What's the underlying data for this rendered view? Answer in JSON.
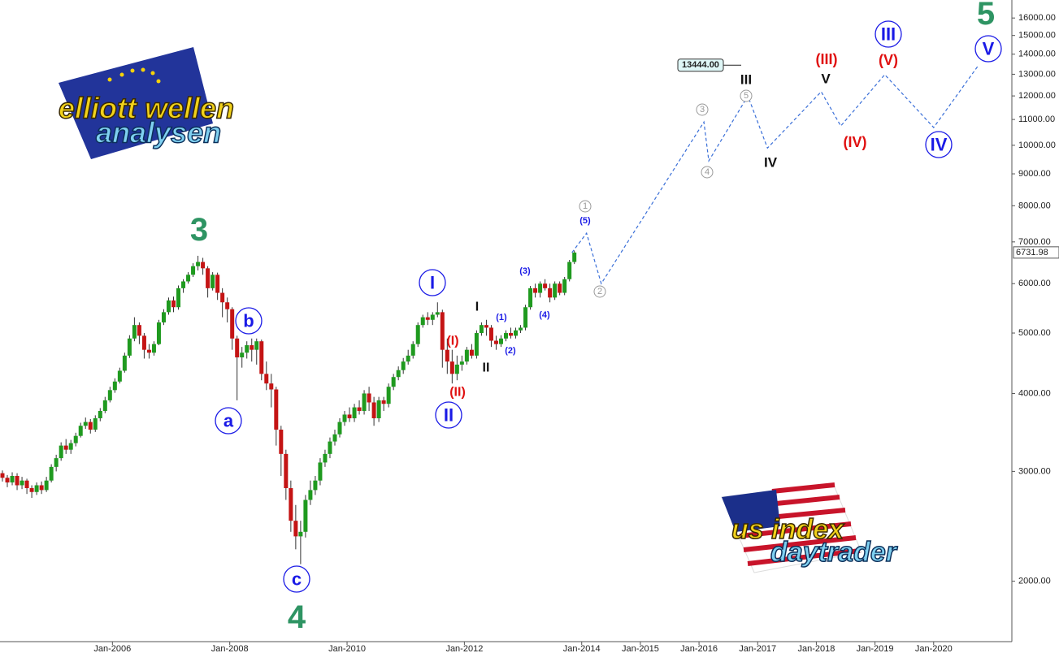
{
  "chart_data": {
    "type": "candlestick",
    "log_scale": true,
    "up_color": "#1f9a1f",
    "down_color": "#c41414",
    "xlim": [
      "2004-02",
      "2021-05"
    ],
    "xticks": [
      {
        "value": "2006-01",
        "label": "Jan-2006"
      },
      {
        "value": "2008-01",
        "label": "Jan-2008"
      },
      {
        "value": "2010-01",
        "label": "Jan-2010"
      },
      {
        "value": "2012-01",
        "label": "Jan-2012"
      },
      {
        "value": "2014-01",
        "label": "Jan-2014"
      },
      {
        "value": "2015-01",
        "label": "Jan-2015"
      },
      {
        "value": "2016-01",
        "label": "Jan-2016"
      },
      {
        "value": "2017-01",
        "label": "Jan-2017"
      },
      {
        "value": "2018-01",
        "label": "Jan-2018"
      },
      {
        "value": "2019-01",
        "label": "Jan-2019"
      },
      {
        "value": "2020-01",
        "label": "Jan-2020"
      }
    ],
    "ylim": [
      1600,
      17100
    ],
    "yticks": [
      {
        "value": 2000,
        "label": "2000.00"
      },
      {
        "value": 3000,
        "label": "3000.00"
      },
      {
        "value": 4000,
        "label": "4000.00"
      },
      {
        "value": 5000,
        "label": "5000.00"
      },
      {
        "value": 6000,
        "label": "6000.00"
      },
      {
        "value": 7000,
        "label": "7000.00"
      },
      {
        "value": 8000,
        "label": "8000.00"
      },
      {
        "value": 9000,
        "label": "9000.00"
      },
      {
        "value": 10000,
        "label": "10000.00"
      },
      {
        "value": 11000,
        "label": "11000.00"
      },
      {
        "value": 12000,
        "label": "12000.00"
      },
      {
        "value": 13000,
        "label": "13000.00"
      },
      {
        "value": 14000,
        "label": "14000.00"
      },
      {
        "value": 15000,
        "label": "15000.00"
      },
      {
        "value": 16000,
        "label": "16000.00"
      }
    ],
    "x": [
      "2004-02",
      "2004-03",
      "2004-04",
      "2004-05",
      "2004-06",
      "2004-07",
      "2004-08",
      "2004-09",
      "2004-10",
      "2004-11",
      "2004-12",
      "2005-01",
      "2005-02",
      "2005-03",
      "2005-04",
      "2005-05",
      "2005-06",
      "2005-07",
      "2005-08",
      "2005-09",
      "2005-10",
      "2005-11",
      "2005-12",
      "2006-01",
      "2006-02",
      "2006-03",
      "2006-04",
      "2006-05",
      "2006-06",
      "2006-07",
      "2006-08",
      "2006-09",
      "2006-10",
      "2006-11",
      "2006-12",
      "2007-01",
      "2007-02",
      "2007-03",
      "2007-04",
      "2007-05",
      "2007-06",
      "2007-07",
      "2007-08",
      "2007-09",
      "2007-10",
      "2007-11",
      "2007-12",
      "2008-01",
      "2008-02",
      "2008-03",
      "2008-04",
      "2008-05",
      "2008-06",
      "2008-07",
      "2008-08",
      "2008-09",
      "2008-10",
      "2008-11",
      "2008-12",
      "2009-01",
      "2009-02",
      "2009-03",
      "2009-04",
      "2009-05",
      "2009-06",
      "2009-07",
      "2009-08",
      "2009-09",
      "2009-10",
      "2009-11",
      "2009-12",
      "2010-01",
      "2010-02",
      "2010-03",
      "2010-04",
      "2010-05",
      "2010-06",
      "2010-07",
      "2010-08",
      "2010-09",
      "2010-10",
      "2010-11",
      "2010-12",
      "2011-01",
      "2011-02",
      "2011-03",
      "2011-04",
      "2011-05",
      "2011-06",
      "2011-07",
      "2011-08",
      "2011-09",
      "2011-10",
      "2011-11",
      "2011-12",
      "2012-01",
      "2012-02",
      "2012-03",
      "2012-04",
      "2012-05",
      "2012-06",
      "2012-07",
      "2012-08",
      "2012-09",
      "2012-10",
      "2012-11",
      "2012-12",
      "2013-01",
      "2013-02",
      "2013-03",
      "2013-04",
      "2013-05",
      "2013-06",
      "2013-07",
      "2013-08",
      "2013-09",
      "2013-10",
      "2013-11"
    ],
    "open": [
      2980,
      2930,
      2880,
      2950,
      2850,
      2900,
      2820,
      2780,
      2850,
      2800,
      2900,
      3050,
      3150,
      3300,
      3250,
      3330,
      3420,
      3550,
      3600,
      3500,
      3650,
      3750,
      3900,
      4050,
      4180,
      4350,
      4600,
      4900,
      5150,
      4950,
      4700,
      4650,
      4800,
      5200,
      5400,
      5640,
      5500,
      5900,
      6050,
      6200,
      6400,
      6500,
      6350,
      5900,
      6200,
      5800,
      5600,
      5460,
      4900,
      4570,
      4650,
      4780,
      4700,
      4850,
      4300,
      4150,
      4060,
      3500,
      3200,
      2820,
      2500,
      2360,
      2400,
      2700,
      2800,
      2900,
      3100,
      3200,
      3350,
      3440,
      3600,
      3700,
      3650,
      3800,
      3750,
      4000,
      3870,
      3650,
      3900,
      3850,
      4100,
      4250,
      4360,
      4500,
      4600,
      4800,
      5150,
      5300,
      5250,
      5350,
      5400,
      4700,
      4500,
      4300,
      4450,
      4500,
      4700,
      4600,
      5000,
      5150,
      5100,
      4860,
      4800,
      4900,
      5000,
      4950,
      5050,
      5100,
      5500,
      5900,
      5800,
      6000,
      5900,
      5700,
      6000,
      5800,
      6100,
      6500
    ],
    "high": [
      3010,
      2960,
      2990,
      2980,
      2940,
      2920,
      2850,
      2880,
      2890,
      2940,
      3080,
      3190,
      3340,
      3380,
      3370,
      3460,
      3590,
      3660,
      3640,
      3690,
      3790,
      3950,
      4100,
      4230,
      4400,
      4650,
      4960,
      5300,
      5200,
      5000,
      4800,
      4850,
      5250,
      5460,
      5700,
      5720,
      5960,
      6100,
      6260,
      6470,
      6650,
      6600,
      6400,
      6260,
      6250,
      5900,
      5700,
      5500,
      4950,
      4750,
      4850,
      4900,
      4900,
      4880,
      4500,
      4300,
      4100,
      3550,
      3250,
      2900,
      2650,
      2500,
      2750,
      2900,
      2950,
      3150,
      3250,
      3400,
      3500,
      3650,
      3750,
      3800,
      3850,
      3900,
      4050,
      4100,
      3950,
      3950,
      3950,
      4150,
      4300,
      4420,
      4560,
      4700,
      4850,
      5200,
      5350,
      5400,
      5400,
      5600,
      5450,
      4900,
      4700,
      4600,
      4600,
      4750,
      4800,
      5050,
      5200,
      5250,
      5150,
      4950,
      4960,
      5050,
      5100,
      5100,
      5150,
      5550,
      5950,
      6000,
      6050,
      6100,
      6000,
      6050,
      6050,
      6150,
      6550,
      6780
    ],
    "low": [
      2890,
      2830,
      2850,
      2800,
      2810,
      2760,
      2720,
      2750,
      2760,
      2780,
      2880,
      3000,
      3120,
      3200,
      3200,
      3290,
      3400,
      3510,
      3450,
      3470,
      3610,
      3720,
      3870,
      4010,
      4150,
      4320,
      4560,
      4850,
      4800,
      4550,
      4550,
      4600,
      4780,
      5150,
      5350,
      5400,
      5450,
      5800,
      6000,
      6150,
      6300,
      6200,
      5700,
      5850,
      5650,
      5300,
      5200,
      4700,
      3900,
      4400,
      4550,
      4500,
      4450,
      4200,
      4050,
      3800,
      3300,
      2950,
      2700,
      2400,
      2250,
      2130,
      2350,
      2650,
      2750,
      2850,
      3050,
      3150,
      3300,
      3400,
      3550,
      3600,
      3600,
      3700,
      3700,
      3750,
      3550,
      3600,
      3750,
      3800,
      4050,
      4200,
      4300,
      4450,
      4550,
      4750,
      5100,
      5150,
      5150,
      5300,
      4400,
      4300,
      4150,
      4200,
      4350,
      4450,
      4550,
      4550,
      4950,
      4950,
      4750,
      4700,
      4750,
      4850,
      4900,
      4900,
      5000,
      5050,
      5450,
      5700,
      5700,
      5850,
      5600,
      5650,
      5750,
      5750,
      6050,
      6450
    ],
    "close": [
      2930,
      2880,
      2950,
      2850,
      2900,
      2820,
      2780,
      2850,
      2800,
      2900,
      3050,
      3150,
      3300,
      3250,
      3330,
      3420,
      3550,
      3600,
      3500,
      3650,
      3750,
      3900,
      4050,
      4180,
      4350,
      4600,
      4900,
      5150,
      4950,
      4700,
      4650,
      4800,
      5200,
      5400,
      5640,
      5500,
      5900,
      6050,
      6200,
      6400,
      6500,
      6350,
      5900,
      6200,
      5800,
      5600,
      5460,
      4900,
      4570,
      4650,
      4780,
      4700,
      4850,
      4300,
      4150,
      4060,
      3500,
      3200,
      2820,
      2500,
      2360,
      2400,
      2700,
      2800,
      2900,
      3100,
      3200,
      3350,
      3440,
      3600,
      3700,
      3650,
      3800,
      3750,
      4000,
      3870,
      3650,
      3900,
      3850,
      4100,
      4250,
      4360,
      4500,
      4600,
      4800,
      5150,
      5300,
      5250,
      5350,
      5400,
      4700,
      4500,
      4300,
      4450,
      4500,
      4700,
      4600,
      5000,
      5150,
      5100,
      4860,
      4800,
      4900,
      5000,
      4950,
      5050,
      5100,
      5500,
      5900,
      5800,
      6000,
      5900,
      5700,
      6000,
      5800,
      6100,
      6500,
      6730
    ],
    "projection": {
      "color": "#3a6fd8",
      "x": [
        "2013-11",
        "2014-02",
        "2014-05",
        "2016-02",
        "2016-03",
        "2016-11",
        "2017-03",
        "2018-02",
        "2018-06",
        "2019-03",
        "2020-01",
        "2020-10"
      ],
      "values": [
        6730,
        7230,
        6000,
        10900,
        9440,
        12000,
        9900,
        12190,
        10740,
        12980,
        10680,
        13380
      ]
    },
    "price_markers": [
      6731.98,
      {
        "value": 13444,
        "label": "13444.00"
      }
    ],
    "annotations": [
      {
        "text": "3",
        "color": "#2e9463"
      },
      {
        "text": "4",
        "color": "#2e9463"
      },
      {
        "text": "5",
        "color": "#2e9463"
      },
      {
        "text": "a",
        "color": "#1a1ae6"
      },
      {
        "text": "b",
        "color": "#1a1ae6"
      },
      {
        "text": "c",
        "color": "#1a1ae6"
      },
      {
        "text": "I",
        "color": "#1a1ae6"
      },
      {
        "text": "II",
        "color": "#1a1ae6"
      },
      {
        "text": "III",
        "color": "#1a1ae6"
      },
      {
        "text": "IV",
        "color": "#1a1ae6"
      },
      {
        "text": "V",
        "color": "#1a1ae6"
      },
      {
        "text": "(I)",
        "color": "#e01010"
      },
      {
        "text": "(II)",
        "color": "#e01010"
      },
      {
        "text": "(III)",
        "color": "#e01010"
      },
      {
        "text": "(IV)",
        "color": "#e01010"
      },
      {
        "text": "(V)",
        "color": "#e01010"
      },
      {
        "text": "I",
        "color": "#111111"
      },
      {
        "text": "II",
        "color": "#111111"
      },
      {
        "text": "III",
        "color": "#111111"
      },
      {
        "text": "IV",
        "color": "#111111"
      },
      {
        "text": "V",
        "color": "#111111"
      },
      {
        "text": "(1)",
        "color": "#1a1ae6"
      },
      {
        "text": "(2)",
        "color": "#1a1ae6"
      },
      {
        "text": "(3)",
        "color": "#1a1ae6"
      },
      {
        "text": "(4)",
        "color": "#1a1ae6"
      },
      {
        "text": "(5)",
        "color": "#1a1ae6"
      },
      {
        "text": "1",
        "color": "#999999"
      },
      {
        "text": "2",
        "color": "#999999"
      },
      {
        "text": "3",
        "color": "#999999"
      },
      {
        "text": "4",
        "color": "#999999"
      },
      {
        "text": "5",
        "color": "#999999"
      }
    ]
  },
  "logos": {
    "elliott": [
      "elliott wellen",
      "analysen"
    ],
    "us": [
      "us index",
      "daytrader"
    ]
  }
}
